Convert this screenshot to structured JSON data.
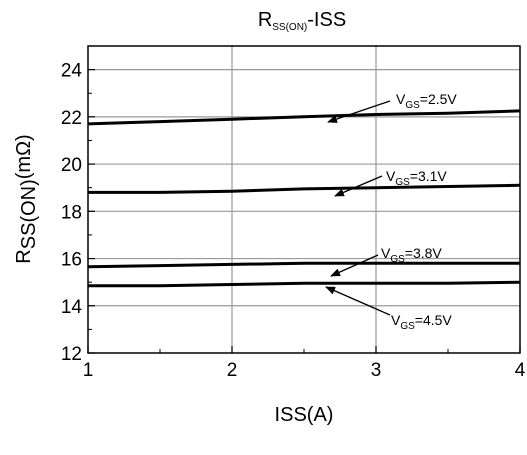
{
  "chart_data": {
    "type": "line",
    "title": {
      "main": "R",
      "sub": "SS(ON)",
      "tail": "-ISS"
    },
    "xlabel": "ISS(A)",
    "ylabel": {
      "main": "R",
      "sub": "SS(ON)",
      "tail": "(mΩ)"
    },
    "xlim": [
      1,
      4
    ],
    "ylim": [
      12,
      25
    ],
    "x_ticks": [
      1,
      2,
      3,
      4
    ],
    "y_ticks": [
      12,
      14,
      16,
      18,
      20,
      22,
      24
    ],
    "grid": true,
    "series": [
      {
        "name": "VGS=2.5V",
        "x": [
          1,
          1.5,
          2,
          2.5,
          3,
          3.5,
          4
        ],
        "y": [
          21.7,
          21.8,
          21.9,
          22.0,
          22.1,
          22.15,
          22.25
        ]
      },
      {
        "name": "VGS=3.1V",
        "x": [
          1,
          1.5,
          2,
          2.5,
          3,
          3.5,
          4
        ],
        "y": [
          18.8,
          18.8,
          18.85,
          18.95,
          19.0,
          19.05,
          19.1
        ]
      },
      {
        "name": "VGS=3.8V",
        "x": [
          1,
          1.5,
          2,
          2.5,
          3,
          3.5,
          4
        ],
        "y": [
          15.65,
          15.7,
          15.75,
          15.8,
          15.8,
          15.8,
          15.8
        ]
      },
      {
        "name": "VGS=4.5V",
        "x": [
          1,
          1.5,
          2,
          2.5,
          3,
          3.5,
          4
        ],
        "y": [
          14.85,
          14.85,
          14.9,
          14.95,
          14.95,
          14.95,
          15.0
        ]
      }
    ],
    "annotations": [
      {
        "label_main": "V",
        "label_sub": "GS",
        "label_tail": "=2.5V",
        "series": 0
      },
      {
        "label_main": "V",
        "label_sub": "GS",
        "label_tail": "=3.1V",
        "series": 1
      },
      {
        "label_main": "V",
        "label_sub": "GS",
        "label_tail": "=3.8V",
        "series": 2
      },
      {
        "label_main": "V",
        "label_sub": "GS",
        "label_tail": "=4.5V",
        "series": 3
      }
    ]
  }
}
